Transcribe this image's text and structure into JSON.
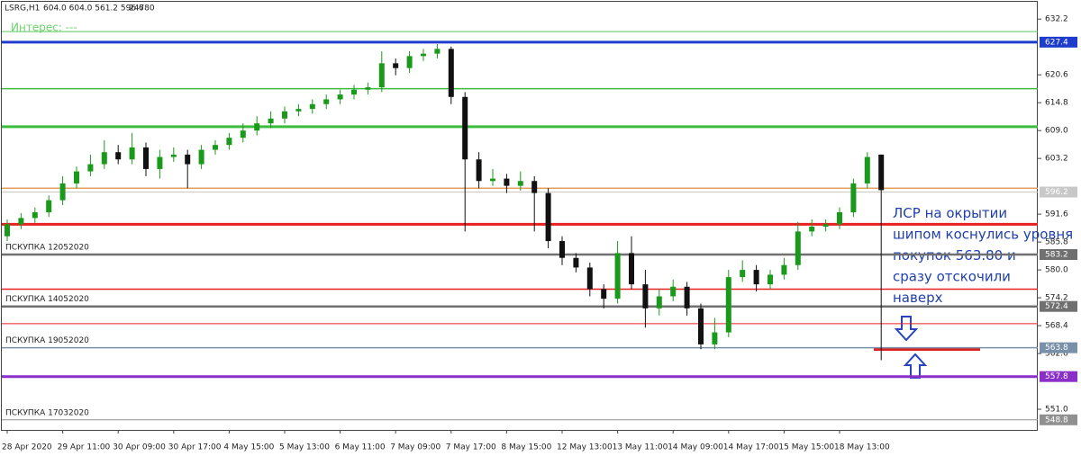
{
  "header": {
    "symbol": "LSRG,H1",
    "ohlc": "604.0 604.0 561.2 596.6",
    "volume": "24780",
    "interest": "Интерес: ---"
  },
  "chart_data": {
    "type": "candlestick",
    "categories": [
      "28 Apr 2020",
      null,
      null,
      null,
      "29 Apr 11:00",
      null,
      null,
      null,
      "30 Apr 09:00",
      null,
      null,
      null,
      "30 Apr 17:00",
      null,
      null,
      null,
      "4 May 15:00",
      null,
      null,
      null,
      "5 May 13:00",
      null,
      null,
      null,
      "6 May 11:00",
      null,
      null,
      null,
      "7 May 09:00",
      null,
      null,
      null,
      "7 May 17:00",
      null,
      null,
      null,
      "8 May 15:00",
      null,
      null,
      null,
      "12 May 13:00",
      null,
      null,
      null,
      "13 May 11:00",
      null,
      null,
      null,
      "14 May 09:00",
      null,
      null,
      null,
      "14 May 17:00",
      null,
      null,
      null,
      "15 May 15:00",
      null,
      null,
      null,
      "18 May 13:00",
      null,
      null,
      null
    ],
    "open": [
      587.0,
      589.5,
      590.8,
      592.0,
      594.5,
      598.0,
      600.5,
      602.0,
      604.5,
      603.0,
      605.5,
      601.0,
      603.5,
      604.0,
      602.0,
      605.0,
      606.0,
      607.5,
      609.0,
      610.5,
      611.5,
      613.0,
      613.5,
      614.5,
      615.5,
      616.5,
      617.5,
      618.0,
      623.0,
      622.0,
      624.5,
      625.0,
      626.0,
      616.0,
      603.0,
      598.5,
      599.0,
      597.5,
      598.5,
      596.0,
      586.0,
      582.5,
      580.5,
      576.0,
      574.0,
      583.5,
      577.0,
      572.0,
      574.5,
      576.5,
      572.0,
      564.5,
      567.0,
      578.5,
      580.0,
      577.0,
      579.0,
      581.0,
      588.0,
      589.0,
      589.5,
      592.0,
      598.0,
      604.0
    ],
    "high": [
      590.5,
      591.8,
      593.0,
      595.5,
      599.5,
      601.5,
      604.0,
      607.0,
      606.0,
      608.5,
      606.5,
      605.0,
      605.5,
      605.0,
      606.0,
      607.0,
      608.5,
      610.5,
      612.0,
      613.0,
      614.0,
      614.5,
      615.5,
      616.5,
      617.5,
      618.5,
      619.0,
      625.5,
      624.0,
      625.5,
      626.0,
      627.0,
      626.5,
      617.0,
      604.5,
      601.0,
      600.0,
      600.5,
      599.5,
      597.0,
      587.0,
      583.5,
      581.5,
      577.0,
      586.0,
      587.0,
      580.0,
      576.0,
      578.0,
      577.5,
      573.0,
      570.0,
      580.0,
      582.0,
      581.0,
      580.0,
      582.5,
      590.0,
      590.5,
      590.5,
      593.0,
      599.0,
      604.5,
      604.0
    ],
    "low": [
      586.0,
      588.5,
      589.8,
      591.0,
      593.5,
      597.0,
      599.5,
      601.0,
      602.0,
      602.0,
      599.5,
      599.0,
      602.5,
      597.0,
      601.0,
      604.0,
      605.0,
      606.5,
      608.0,
      609.5,
      610.5,
      612.0,
      612.5,
      613.5,
      614.5,
      615.5,
      616.5,
      617.0,
      620.5,
      621.0,
      623.5,
      624.0,
      614.5,
      588.0,
      597.0,
      597.5,
      596.0,
      596.5,
      588.0,
      584.5,
      581.0,
      579.5,
      574.5,
      572.0,
      573.0,
      576.0,
      568.0,
      570.5,
      573.5,
      570.5,
      563.5,
      563.5,
      566.0,
      577.5,
      575.5,
      576.0,
      578.0,
      580.0,
      587.0,
      588.0,
      588.5,
      591.0,
      597.0,
      561.2
    ],
    "close": [
      589.5,
      590.8,
      592.0,
      594.5,
      598.0,
      600.5,
      602.0,
      604.5,
      603.0,
      605.5,
      601.0,
      603.5,
      604.0,
      602.0,
      605.0,
      606.0,
      607.5,
      609.0,
      610.5,
      611.5,
      613.0,
      613.5,
      614.5,
      615.5,
      616.5,
      617.5,
      618.0,
      623.0,
      622.0,
      624.5,
      625.0,
      626.0,
      616.0,
      603.0,
      598.5,
      599.0,
      597.5,
      598.5,
      596.0,
      586.0,
      582.5,
      580.5,
      576.0,
      574.0,
      583.5,
      577.0,
      572.0,
      574.5,
      576.5,
      572.0,
      564.5,
      567.0,
      578.5,
      580.0,
      577.0,
      579.0,
      581.0,
      588.0,
      589.0,
      589.5,
      592.0,
      598.0,
      603.5,
      596.6
    ],
    "up_color": "#1a9a1a",
    "down_color": "#111111",
    "ylim": [
      546.7,
      634.3
    ],
    "yticks": [
      632.2,
      620.6,
      614.8,
      {
        "value": 609,
        "label": "609.0"
      },
      603.2,
      591.6,
      585.8,
      {
        "value": 580,
        "label": "580.0"
      },
      574.2,
      568.4,
      562.6,
      {
        "value": 551,
        "label": "551.0"
      }
    ],
    "levels": [
      {
        "value": 629.6,
        "color": "#5cc85c",
        "width": 1
      },
      {
        "value": 627.4,
        "color": "#1e3ccc",
        "width": 3,
        "axis_label": true
      },
      {
        "value": 617.7,
        "color": "#3cbc3c",
        "width": 1.5
      },
      {
        "value": 609.8,
        "color": "#3cbc3c",
        "width": 3
      },
      {
        "value": 597.0,
        "color": "#e0a060",
        "width": 1.5
      },
      {
        "value": 596.2,
        "color": "#c8c8c8",
        "width": 1,
        "axis_label": true
      },
      {
        "value": 589.5,
        "color": "#e82020",
        "width": 3
      },
      {
        "value": 583.2,
        "color": "#707070",
        "width": 2.5,
        "axis_label": true,
        "text": "ПСКУПКА 12052020"
      },
      {
        "value": 576.0,
        "color": "#e82020",
        "width": 1.5
      },
      {
        "value": 572.4,
        "color": "#707070",
        "width": 2.5,
        "axis_label": true,
        "text": "ПСКУПКА 14052020"
      },
      {
        "value": 568.8,
        "color": "#e82020",
        "width": 1
      },
      {
        "value": 563.8,
        "color": "#7890a8",
        "width": 1.5,
        "axis_label": true,
        "text": "ПСКУПКА 19052020"
      },
      {
        "value": 557.8,
        "color": "#8a30c8",
        "width": 3,
        "axis_label": true
      },
      {
        "value": 548.8,
        "color": "#909090",
        "width": 1,
        "axis_label": true,
        "text": "ПСКУПКА 17032020"
      }
    ]
  },
  "annotation": {
    "lines": [
      "ЛСР на окрытии",
      "шипом коснулись уровня",
      "покупок 563.80 и",
      "сразу отскочили",
      "наверх"
    ]
  }
}
